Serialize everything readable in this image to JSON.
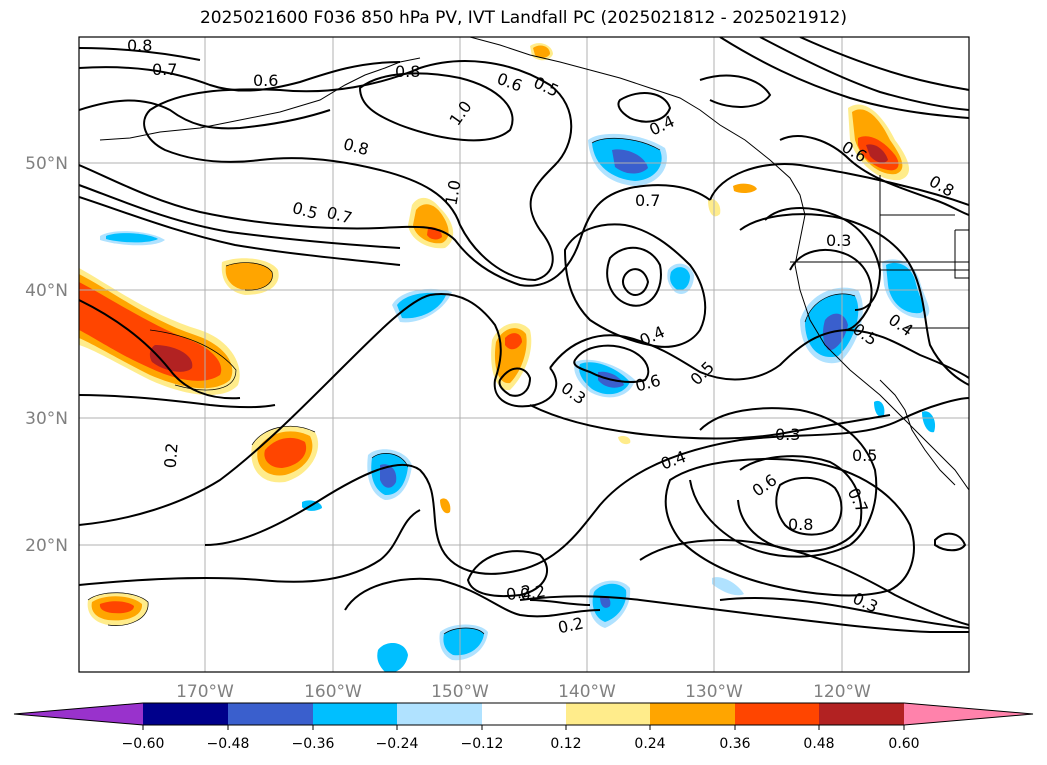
{
  "title": "2025021600 F036 850 hPa PV, IVT Landfall PC (2025021812 - 2025021912)",
  "lat_labels": [
    "50°N",
    "40°N",
    "30°N",
    "20°N"
  ],
  "lon_labels": [
    "170°W",
    "160°W",
    "150°W",
    "140°W",
    "130°W",
    "120°W"
  ],
  "contour_labels": [
    "0.8",
    "0.7",
    "0.6",
    "0.8",
    "1.0",
    "0.6",
    "0.5",
    "0.4",
    "0.8",
    "1.0",
    "0.5",
    "0.7",
    "0.2",
    "0.7",
    "0.2",
    "0.6",
    "0.8",
    "0.3",
    "0.4",
    "0.5",
    "0.4",
    "0.5",
    "0.6",
    "0.3",
    "0.3",
    "0.4",
    "0.5",
    "0.6",
    "0.7",
    "0.8",
    "0.2",
    "0.2",
    "0.3"
  ],
  "colorbar": {
    "ticks": [
      "−0.60",
      "−0.48",
      "−0.36",
      "−0.24",
      "−0.12",
      "0.12",
      "0.24",
      "0.36",
      "0.48",
      "0.60"
    ],
    "colors": [
      "#9932cc",
      "#00008b",
      "#3a5fcd",
      "#00bfff",
      "#b0e2ff",
      "#ffffff",
      "#ffec8b",
      "#ffa500",
      "#ff4500",
      "#b22222",
      "#ff82ab"
    ]
  }
}
